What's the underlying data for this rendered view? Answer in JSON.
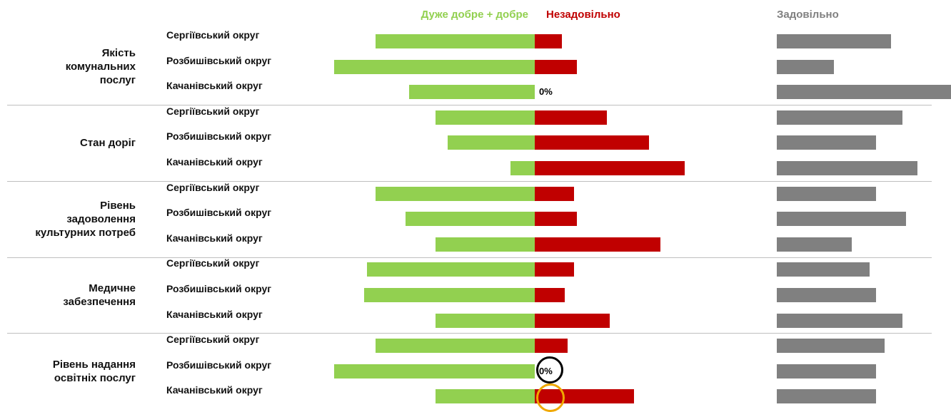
{
  "chart_data": {
    "type": "diverging_bar",
    "groups": [
      {
        "name": "Якість\nкомунальних\nпослуг",
        "categories": [
          "Сергіївський округ",
          "Розбишівський округ",
          "Качанівський округ"
        ]
      },
      {
        "name": "Стан доріг",
        "categories": [
          "Сергіївський округ",
          "Розбишівський округ",
          "Качанівський округ"
        ]
      },
      {
        "name": "Рівень\nзадоволення\nкультурних потреб",
        "categories": [
          "Сергіївський округ",
          "Розбишівський округ",
          "Качанівський округ"
        ]
      },
      {
        "name": "Медичне\nзабезпечення",
        "categories": [
          "Сергіївський округ",
          "Розбишівський округ",
          "Качанівський округ"
        ]
      },
      {
        "name": "Рівень надання\nосвітніх послуг",
        "categories": [
          "Сергіївський округ",
          "Розбишівський округ",
          "Качанівський округ"
        ]
      }
    ],
    "series": [
      {
        "name": "Дуже добре + добре",
        "color": "#92d050",
        "values": [
          53,
          67,
          42,
          33,
          29,
          8,
          53,
          43,
          33,
          56,
          57,
          33,
          53,
          67,
          33
        ],
        "value_labels": [
          "53%",
          "67%",
          "42%",
          "33%",
          "29%",
          "8%",
          "53%",
          "43%",
          "33%",
          "56%",
          "57%",
          "33%",
          "53%",
          "67%",
          "33%"
        ]
      },
      {
        "name": "Незадовільно",
        "color": "#c00000",
        "values": [
          9,
          14,
          0,
          24,
          38,
          50,
          13,
          14,
          42,
          13,
          10,
          25,
          11,
          0,
          33
        ],
        "value_labels": [
          "9%",
          "14%",
          "0%",
          "24%",
          "38%",
          "50%",
          "13%",
          "14%",
          "42%",
          "13%",
          "10%",
          "25%",
          "11%",
          "0%",
          "33%"
        ]
      },
      {
        "name": "Задовільно",
        "color": "#808080",
        "values": [
          38,
          19,
          58,
          42,
          33,
          47,
          33,
          43,
          25,
          31,
          33,
          42,
          36,
          33,
          33
        ],
        "value_labels": [
          "38%",
          "19%",
          "58%",
          "42%",
          "33%",
          "47%",
          "33%",
          "43%",
          "25%",
          "31%",
          "33%",
          "42%",
          "36%",
          "33%",
          "33%"
        ]
      }
    ]
  }
}
